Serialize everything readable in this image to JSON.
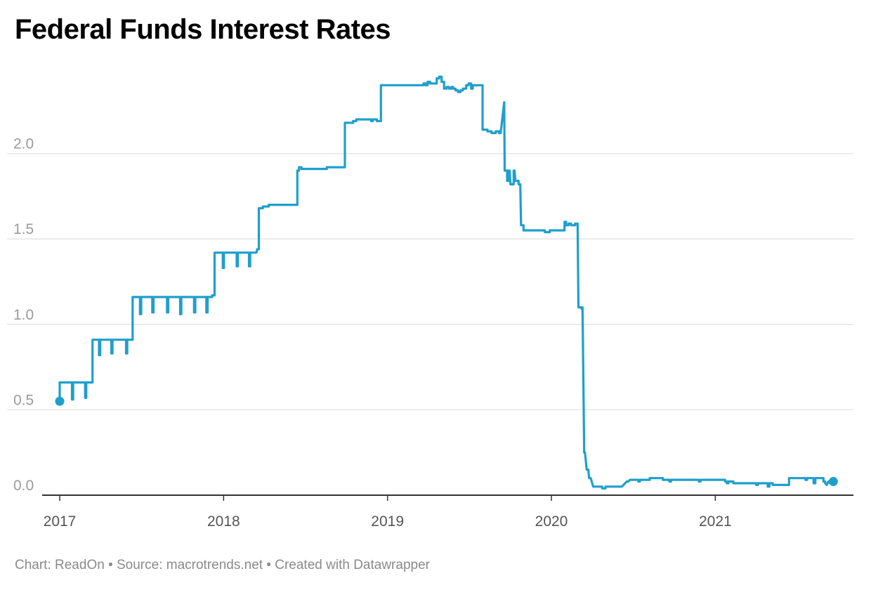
{
  "chart_data": {
    "type": "line",
    "title": "Federal Funds Interest Rates",
    "xlabel": "",
    "ylabel": "",
    "xlim": [
      2017.0,
      2021.8
    ],
    "ylim": [
      0,
      2.5
    ],
    "x_ticks": [
      2017,
      2018,
      2019,
      2020,
      2021
    ],
    "x_tick_labels": [
      "2017",
      "2018",
      "2019",
      "2020",
      "2021"
    ],
    "y_ticks": [
      0,
      0.5,
      1.0,
      1.5,
      2.0
    ],
    "y_tick_labels": [
      "0.0",
      "0.5",
      "1.0",
      "1.5",
      "2.0"
    ],
    "grid": true,
    "legend": "none",
    "color": "#1f9fcc",
    "start_value": 0.55,
    "end_value": 0.08,
    "series": [
      {
        "values": [
          [
            2017.0,
            0.55
          ],
          [
            2017.0,
            0.66
          ],
          [
            2017.075,
            0.66
          ],
          [
            2017.075,
            0.56
          ],
          [
            2017.082,
            0.56
          ],
          [
            2017.082,
            0.66
          ],
          [
            2017.155,
            0.66
          ],
          [
            2017.155,
            0.57
          ],
          [
            2017.162,
            0.57
          ],
          [
            2017.162,
            0.66
          ],
          [
            2017.2,
            0.66
          ],
          [
            2017.2,
            0.91
          ],
          [
            2017.24,
            0.91
          ],
          [
            2017.24,
            0.82
          ],
          [
            2017.247,
            0.82
          ],
          [
            2017.247,
            0.91
          ],
          [
            2017.315,
            0.91
          ],
          [
            2017.315,
            0.83
          ],
          [
            2017.322,
            0.83
          ],
          [
            2017.322,
            0.91
          ],
          [
            2017.405,
            0.91
          ],
          [
            2017.405,
            0.83
          ],
          [
            2017.412,
            0.83
          ],
          [
            2017.412,
            0.91
          ],
          [
            2017.445,
            0.91
          ],
          [
            2017.445,
            1.16
          ],
          [
            2017.49,
            1.16
          ],
          [
            2017.49,
            1.06
          ],
          [
            2017.497,
            1.06
          ],
          [
            2017.497,
            1.16
          ],
          [
            2017.565,
            1.16
          ],
          [
            2017.565,
            1.07
          ],
          [
            2017.572,
            1.07
          ],
          [
            2017.572,
            1.16
          ],
          [
            2017.655,
            1.16
          ],
          [
            2017.655,
            1.07
          ],
          [
            2017.662,
            1.07
          ],
          [
            2017.662,
            1.16
          ],
          [
            2017.735,
            1.16
          ],
          [
            2017.735,
            1.06
          ],
          [
            2017.742,
            1.06
          ],
          [
            2017.742,
            1.16
          ],
          [
            2017.82,
            1.16
          ],
          [
            2017.82,
            1.07
          ],
          [
            2017.827,
            1.07
          ],
          [
            2017.827,
            1.16
          ],
          [
            2017.895,
            1.16
          ],
          [
            2017.895,
            1.07
          ],
          [
            2017.902,
            1.07
          ],
          [
            2017.902,
            1.16
          ],
          [
            2017.93,
            1.16
          ],
          [
            2017.93,
            1.17
          ],
          [
            2017.945,
            1.17
          ],
          [
            2017.945,
            1.42
          ],
          [
            2017.995,
            1.42
          ],
          [
            2017.995,
            1.33
          ],
          [
            2018.002,
            1.33
          ],
          [
            2018.002,
            1.42
          ],
          [
            2018.08,
            1.42
          ],
          [
            2018.08,
            1.34
          ],
          [
            2018.087,
            1.34
          ],
          [
            2018.087,
            1.42
          ],
          [
            2018.155,
            1.42
          ],
          [
            2018.155,
            1.34
          ],
          [
            2018.162,
            1.34
          ],
          [
            2018.162,
            1.42
          ],
          [
            2018.2,
            1.42
          ],
          [
            2018.205,
            1.44
          ],
          [
            2018.215,
            1.44
          ],
          [
            2018.215,
            1.68
          ],
          [
            2018.24,
            1.68
          ],
          [
            2018.24,
            1.69
          ],
          [
            2018.275,
            1.69
          ],
          [
            2018.275,
            1.7
          ],
          [
            2018.45,
            1.7
          ],
          [
            2018.45,
            1.9
          ],
          [
            2018.46,
            1.9
          ],
          [
            2018.46,
            1.92
          ],
          [
            2018.475,
            1.92
          ],
          [
            2018.475,
            1.91
          ],
          [
            2018.63,
            1.91
          ],
          [
            2018.63,
            1.92
          ],
          [
            2018.74,
            1.92
          ],
          [
            2018.74,
            2.18
          ],
          [
            2018.79,
            2.18
          ],
          [
            2018.79,
            2.19
          ],
          [
            2018.81,
            2.19
          ],
          [
            2018.81,
            2.2
          ],
          [
            2018.9,
            2.2
          ],
          [
            2018.9,
            2.19
          ],
          [
            2018.91,
            2.19
          ],
          [
            2018.91,
            2.2
          ],
          [
            2018.935,
            2.2
          ],
          [
            2018.935,
            2.19
          ],
          [
            2018.96,
            2.19
          ],
          [
            2018.96,
            2.4
          ],
          [
            2019.22,
            2.4
          ],
          [
            2019.22,
            2.41
          ],
          [
            2019.232,
            2.41
          ],
          [
            2019.232,
            2.4
          ],
          [
            2019.245,
            2.4
          ],
          [
            2019.245,
            2.42
          ],
          [
            2019.26,
            2.42
          ],
          [
            2019.26,
            2.41
          ],
          [
            2019.3,
            2.41
          ],
          [
            2019.3,
            2.44
          ],
          [
            2019.315,
            2.44
          ],
          [
            2019.315,
            2.45
          ],
          [
            2019.33,
            2.45
          ],
          [
            2019.33,
            2.42
          ],
          [
            2019.345,
            2.42
          ],
          [
            2019.345,
            2.38
          ],
          [
            2019.36,
            2.38
          ],
          [
            2019.36,
            2.39
          ],
          [
            2019.375,
            2.39
          ],
          [
            2019.375,
            2.38
          ],
          [
            2019.39,
            2.38
          ],
          [
            2019.39,
            2.39
          ],
          [
            2019.4,
            2.39
          ],
          [
            2019.4,
            2.38
          ],
          [
            2019.415,
            2.38
          ],
          [
            2019.415,
            2.37
          ],
          [
            2019.43,
            2.37
          ],
          [
            2019.43,
            2.36
          ],
          [
            2019.445,
            2.36
          ],
          [
            2019.445,
            2.37
          ],
          [
            2019.46,
            2.37
          ],
          [
            2019.46,
            2.38
          ],
          [
            2019.48,
            2.38
          ],
          [
            2019.48,
            2.4
          ],
          [
            2019.495,
            2.4
          ],
          [
            2019.495,
            2.41
          ],
          [
            2019.51,
            2.41
          ],
          [
            2019.51,
            2.38
          ],
          [
            2019.52,
            2.38
          ],
          [
            2019.52,
            2.4
          ],
          [
            2019.58,
            2.4
          ],
          [
            2019.58,
            2.14
          ],
          [
            2019.61,
            2.14
          ],
          [
            2019.61,
            2.13
          ],
          [
            2019.635,
            2.13
          ],
          [
            2019.635,
            2.12
          ],
          [
            2019.66,
            2.12
          ],
          [
            2019.66,
            2.13
          ],
          [
            2019.68,
            2.13
          ],
          [
            2019.68,
            2.12
          ],
          [
            2019.69,
            2.12
          ],
          [
            2019.7,
            2.2
          ],
          [
            2019.712,
            2.3
          ],
          [
            2019.715,
            1.9
          ],
          [
            2019.73,
            1.9
          ],
          [
            2019.73,
            1.84
          ],
          [
            2019.74,
            1.84
          ],
          [
            2019.74,
            1.9
          ],
          [
            2019.745,
            1.9
          ],
          [
            2019.75,
            1.82
          ],
          [
            2019.77,
            1.82
          ],
          [
            2019.77,
            1.9
          ],
          [
            2019.775,
            1.9
          ],
          [
            2019.78,
            1.84
          ],
          [
            2019.8,
            1.84
          ],
          [
            2019.8,
            1.82
          ],
          [
            2019.81,
            1.82
          ],
          [
            2019.815,
            1.58
          ],
          [
            2019.83,
            1.58
          ],
          [
            2019.83,
            1.55
          ],
          [
            2019.96,
            1.55
          ],
          [
            2019.96,
            1.54
          ],
          [
            2019.99,
            1.54
          ],
          [
            2019.99,
            1.55
          ],
          [
            2020.08,
            1.55
          ],
          [
            2020.08,
            1.6
          ],
          [
            2020.09,
            1.6
          ],
          [
            2020.09,
            1.58
          ],
          [
            2020.105,
            1.58
          ],
          [
            2020.105,
            1.59
          ],
          [
            2020.12,
            1.59
          ],
          [
            2020.12,
            1.58
          ],
          [
            2020.145,
            1.58
          ],
          [
            2020.145,
            1.59
          ],
          [
            2020.16,
            1.59
          ],
          [
            2020.165,
            1.1
          ],
          [
            2020.18,
            1.1
          ],
          [
            2020.185,
            1.09
          ],
          [
            2020.19,
            1.1
          ],
          [
            2020.2,
            0.25
          ],
          [
            2020.205,
            0.25
          ],
          [
            2020.215,
            0.15
          ],
          [
            2020.225,
            0.15
          ],
          [
            2020.23,
            0.1
          ],
          [
            2020.24,
            0.1
          ],
          [
            2020.255,
            0.05
          ],
          [
            2020.31,
            0.05
          ],
          [
            2020.31,
            0.04
          ],
          [
            2020.33,
            0.04
          ],
          [
            2020.33,
            0.05
          ],
          [
            2020.43,
            0.05
          ],
          [
            2020.44,
            0.06
          ],
          [
            2020.45,
            0.07
          ],
          [
            2020.46,
            0.08
          ],
          [
            2020.47,
            0.08
          ],
          [
            2020.48,
            0.09
          ],
          [
            2020.53,
            0.09
          ],
          [
            2020.53,
            0.08
          ],
          [
            2020.54,
            0.08
          ],
          [
            2020.54,
            0.09
          ],
          [
            2020.6,
            0.09
          ],
          [
            2020.6,
            0.1
          ],
          [
            2020.68,
            0.1
          ],
          [
            2020.68,
            0.09
          ],
          [
            2020.72,
            0.09
          ],
          [
            2020.72,
            0.08
          ],
          [
            2020.73,
            0.08
          ],
          [
            2020.73,
            0.09
          ],
          [
            2020.9,
            0.09
          ],
          [
            2020.9,
            0.08
          ],
          [
            2020.91,
            0.08
          ],
          [
            2020.91,
            0.09
          ],
          [
            2021.06,
            0.09
          ],
          [
            2021.06,
            0.08
          ],
          [
            2021.07,
            0.08
          ],
          [
            2021.07,
            0.07
          ],
          [
            2021.08,
            0.07
          ],
          [
            2021.08,
            0.08
          ],
          [
            2021.11,
            0.08
          ],
          [
            2021.11,
            0.07
          ],
          [
            2021.25,
            0.07
          ],
          [
            2021.25,
            0.06
          ],
          [
            2021.26,
            0.06
          ],
          [
            2021.26,
            0.07
          ],
          [
            2021.32,
            0.07
          ],
          [
            2021.32,
            0.05
          ],
          [
            2021.33,
            0.05
          ],
          [
            2021.33,
            0.07
          ],
          [
            2021.35,
            0.07
          ],
          [
            2021.35,
            0.06
          ],
          [
            2021.45,
            0.06
          ],
          [
            2021.45,
            0.1
          ],
          [
            2021.55,
            0.1
          ],
          [
            2021.55,
            0.09
          ],
          [
            2021.56,
            0.09
          ],
          [
            2021.56,
            0.1
          ],
          [
            2021.6,
            0.1
          ],
          [
            2021.6,
            0.07
          ],
          [
            2021.61,
            0.07
          ],
          [
            2021.61,
            0.1
          ],
          [
            2021.66,
            0.1
          ],
          [
            2021.66,
            0.08
          ],
          [
            2021.67,
            0.08
          ],
          [
            2021.67,
            0.07
          ],
          [
            2021.68,
            0.06
          ],
          [
            2021.69,
            0.08
          ],
          [
            2021.7,
            0.08
          ],
          [
            2021.7,
            0.07
          ],
          [
            2021.72,
            0.08
          ]
        ]
      }
    ]
  },
  "footer": {
    "text": "Chart: ReadOn • Source: macrotrends.net • Created with Datawrapper"
  }
}
